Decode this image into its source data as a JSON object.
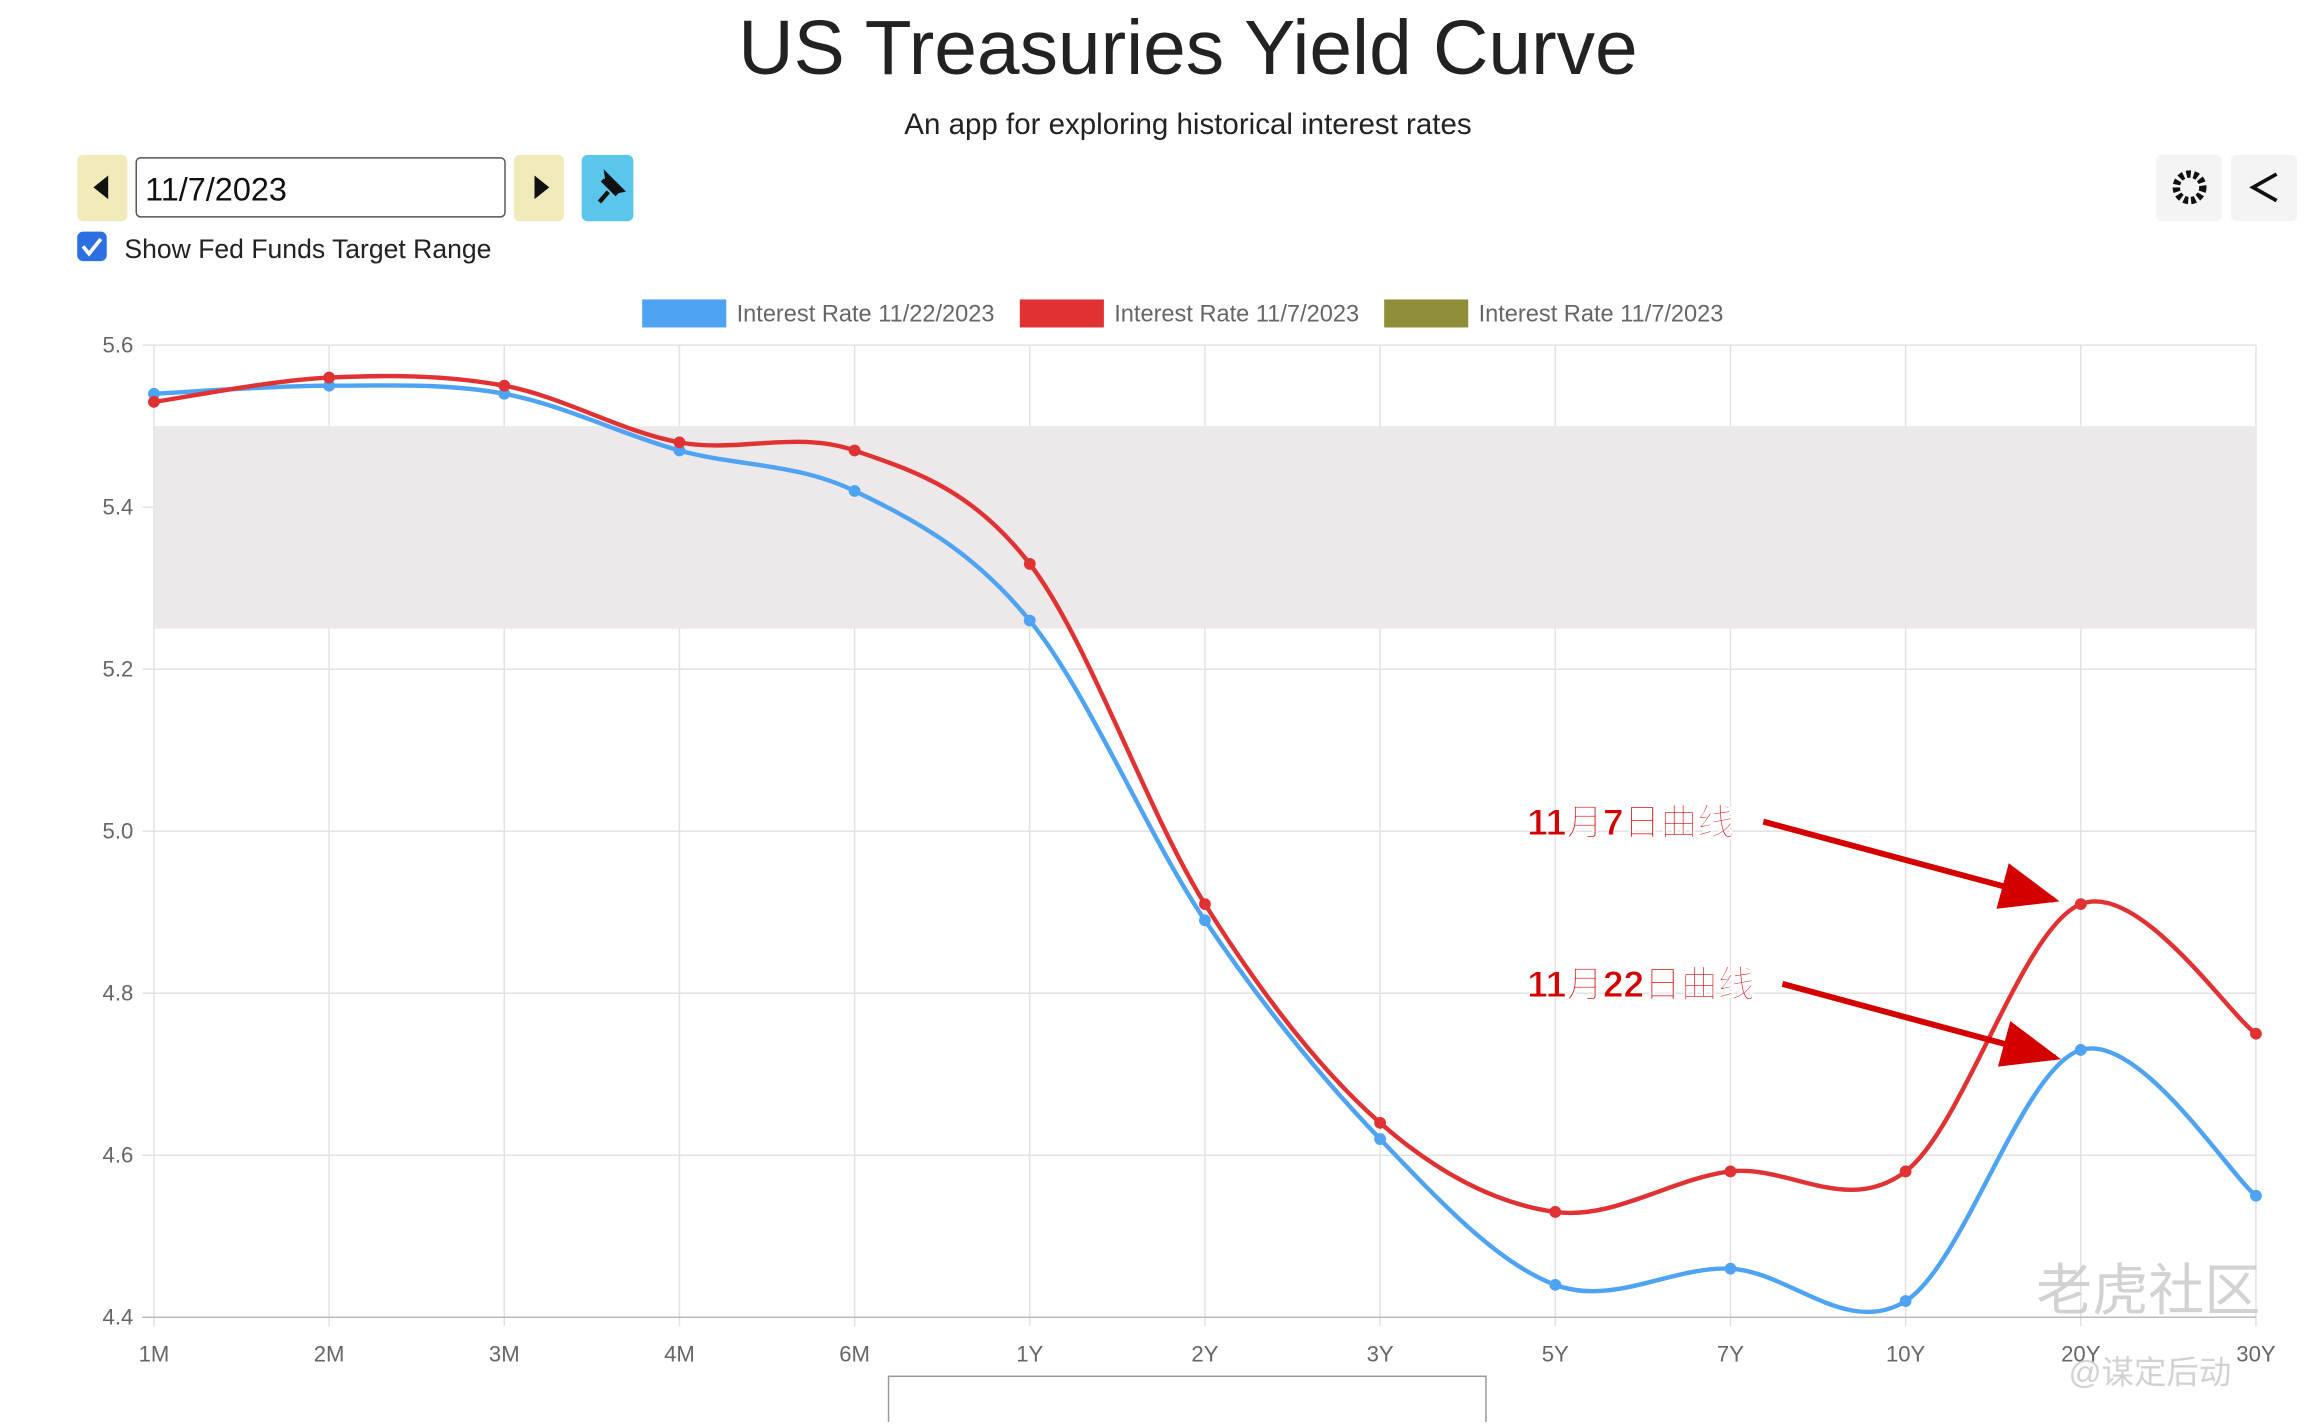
{
  "header": {
    "title": "US Treasuries Yield Curve",
    "subtitle": "An app for exploring historical interest rates"
  },
  "controls": {
    "date": "11/7/2023",
    "checkbox_label": "Show Fed Funds Target Range"
  },
  "chart_data": {
    "type": "line",
    "categories": [
      "1M",
      "2M",
      "3M",
      "4M",
      "6M",
      "1Y",
      "2Y",
      "3Y",
      "5Y",
      "7Y",
      "10Y",
      "20Y",
      "30Y"
    ],
    "series": [
      {
        "name": "Interest Rate 11/22/2023",
        "color": "#4ea3f2",
        "values": [
          5.54,
          5.55,
          5.54,
          5.47,
          5.42,
          5.26,
          4.89,
          4.62,
          4.44,
          4.46,
          4.42,
          4.73,
          4.55
        ]
      },
      {
        "name": "Interest Rate 11/7/2023",
        "color": "#e03232",
        "values": [
          5.53,
          5.56,
          5.55,
          5.48,
          5.47,
          5.33,
          4.91,
          4.64,
          4.53,
          4.58,
          4.58,
          4.91,
          4.75
        ]
      },
      {
        "name": "Interest Rate 11/7/2023",
        "color": "#8f8f3a",
        "range": [
          5.25,
          5.5
        ]
      }
    ],
    "ylim": [
      4.4,
      5.6
    ],
    "yticks": [
      4.4,
      4.6,
      4.8,
      {
        "value": 5,
        "label": "5.0"
      },
      5.2,
      5.4,
      5.6
    ],
    "grid": true,
    "annotations": [
      "11月7日曲线",
      "11月22日曲线"
    ]
  },
  "watermark": {
    "brand": "老虎社区",
    "handle": "@谋定后动"
  }
}
